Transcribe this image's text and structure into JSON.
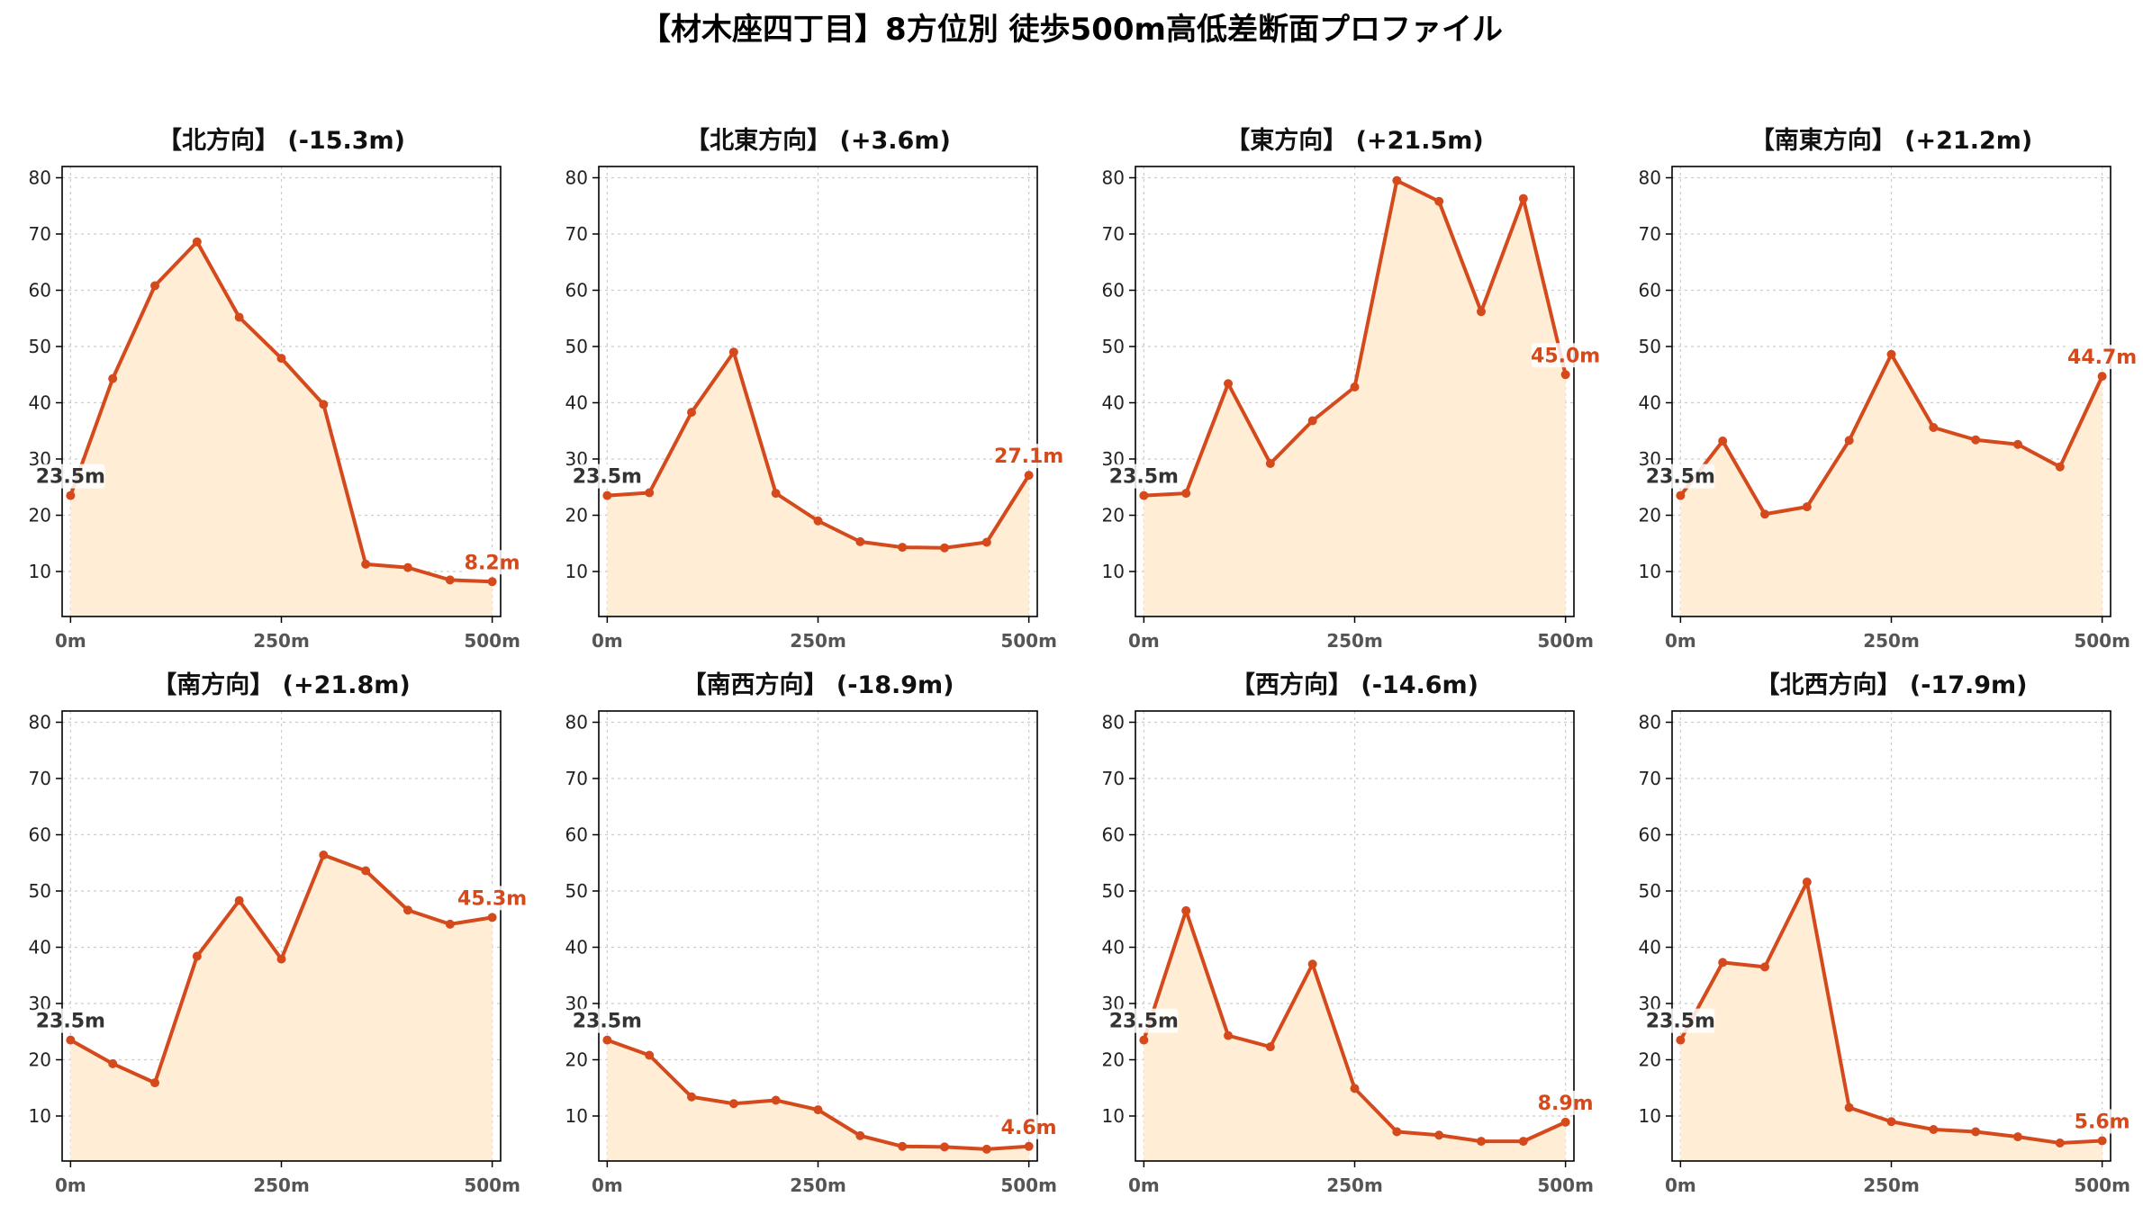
{
  "title": "【材木座四丁目】8方位別 徒歩500m高低差断面プロファイル",
  "colors": {
    "line": "#d44a1c",
    "fill": "#ffedd5",
    "grid": "#cccccc",
    "start_label": "#333333",
    "end_label": "#d44a1c"
  },
  "chart_data": [
    {
      "type": "area",
      "title": "【北方向】 (-15.3m)",
      "x": [
        0,
        50,
        100,
        150,
        200,
        250,
        300,
        350,
        400,
        450,
        500
      ],
      "xticks": [
        "0m",
        "250m",
        "500m"
      ],
      "y": [
        23.5,
        44.3,
        60.8,
        68.6,
        55.2,
        47.9,
        39.7,
        11.3,
        10.7,
        8.5,
        8.2
      ],
      "xlim": [
        -10,
        510
      ],
      "ylim": [
        2,
        82
      ],
      "yticks": [
        10,
        20,
        30,
        40,
        50,
        60,
        70,
        80
      ],
      "start_label": "23.5m",
      "end_label": "8.2m",
      "grid": true
    },
    {
      "type": "area",
      "title": "【北東方向】 (+3.6m)",
      "x": [
        0,
        50,
        100,
        150,
        200,
        250,
        300,
        350,
        400,
        450,
        500
      ],
      "xticks": [
        "0m",
        "250m",
        "500m"
      ],
      "y": [
        23.5,
        24.0,
        38.3,
        49.0,
        23.9,
        19.0,
        15.3,
        14.3,
        14.2,
        15.2,
        27.1
      ],
      "xlim": [
        -10,
        510
      ],
      "ylim": [
        2,
        82
      ],
      "yticks": [
        10,
        20,
        30,
        40,
        50,
        60,
        70,
        80
      ],
      "start_label": "23.5m",
      "end_label": "27.1m",
      "grid": true
    },
    {
      "type": "area",
      "title": "【東方向】 (+21.5m)",
      "x": [
        0,
        50,
        100,
        150,
        200,
        250,
        300,
        350,
        400,
        450,
        500
      ],
      "xticks": [
        "0m",
        "250m",
        "500m"
      ],
      "y": [
        23.5,
        23.9,
        43.4,
        29.2,
        36.8,
        42.8,
        79.5,
        75.8,
        56.2,
        76.3,
        45.0
      ],
      "xlim": [
        -10,
        510
      ],
      "ylim": [
        2,
        82
      ],
      "yticks": [
        10,
        20,
        30,
        40,
        50,
        60,
        70,
        80
      ],
      "start_label": "23.5m",
      "end_label": "45.0m",
      "grid": true
    },
    {
      "type": "area",
      "title": "【南東方向】 (+21.2m)",
      "x": [
        0,
        50,
        100,
        150,
        200,
        250,
        300,
        350,
        400,
        450,
        500
      ],
      "xticks": [
        "0m",
        "250m",
        "500m"
      ],
      "y": [
        23.5,
        33.2,
        20.2,
        21.5,
        33.3,
        48.6,
        35.6,
        33.4,
        32.6,
        28.6,
        44.7
      ],
      "xlim": [
        -10,
        510
      ],
      "ylim": [
        2,
        82
      ],
      "yticks": [
        10,
        20,
        30,
        40,
        50,
        60,
        70,
        80
      ],
      "start_label": "23.5m",
      "end_label": "44.7m",
      "grid": true
    },
    {
      "type": "area",
      "title": "【南方向】 (+21.8m)",
      "x": [
        0,
        50,
        100,
        150,
        200,
        250,
        300,
        350,
        400,
        450,
        500
      ],
      "xticks": [
        "0m",
        "250m",
        "500m"
      ],
      "y": [
        23.5,
        19.3,
        15.9,
        38.4,
        48.3,
        37.9,
        56.4,
        53.6,
        46.6,
        44.1,
        45.3
      ],
      "xlim": [
        -10,
        510
      ],
      "ylim": [
        2,
        82
      ],
      "yticks": [
        10,
        20,
        30,
        40,
        50,
        60,
        70,
        80
      ],
      "start_label": "23.5m",
      "end_label": "45.3m",
      "grid": true
    },
    {
      "type": "area",
      "title": "【南西方向】 (-18.9m)",
      "x": [
        0,
        50,
        100,
        150,
        200,
        250,
        300,
        350,
        400,
        450,
        500
      ],
      "xticks": [
        "0m",
        "250m",
        "500m"
      ],
      "y": [
        23.5,
        20.8,
        13.4,
        12.2,
        12.8,
        11.1,
        6.5,
        4.6,
        4.5,
        4.1,
        4.6
      ],
      "xlim": [
        -10,
        510
      ],
      "ylim": [
        2,
        82
      ],
      "yticks": [
        10,
        20,
        30,
        40,
        50,
        60,
        70,
        80
      ],
      "start_label": "23.5m",
      "end_label": "4.6m",
      "grid": true
    },
    {
      "type": "area",
      "title": "【西方向】 (-14.6m)",
      "x": [
        0,
        50,
        100,
        150,
        200,
        250,
        300,
        350,
        400,
        450,
        500
      ],
      "xticks": [
        "0m",
        "250m",
        "500m"
      ],
      "y": [
        23.5,
        46.5,
        24.3,
        22.3,
        37.0,
        14.9,
        7.2,
        6.6,
        5.5,
        5.5,
        8.9
      ],
      "xlim": [
        -10,
        510
      ],
      "ylim": [
        2,
        82
      ],
      "yticks": [
        10,
        20,
        30,
        40,
        50,
        60,
        70,
        80
      ],
      "start_label": "23.5m",
      "end_label": "8.9m",
      "grid": true
    },
    {
      "type": "area",
      "title": "【北西方向】 (-17.9m)",
      "x": [
        0,
        50,
        100,
        150,
        200,
        250,
        300,
        350,
        400,
        450,
        500
      ],
      "xticks": [
        "0m",
        "250m",
        "500m"
      ],
      "y": [
        23.5,
        37.3,
        36.5,
        51.6,
        11.5,
        9.0,
        7.6,
        7.2,
        6.3,
        5.2,
        5.6
      ],
      "xlim": [
        -10,
        510
      ],
      "ylim": [
        2,
        82
      ],
      "yticks": [
        10,
        20,
        30,
        40,
        50,
        60,
        70,
        80
      ],
      "start_label": "23.5m",
      "end_label": "5.6m",
      "grid": true
    }
  ]
}
